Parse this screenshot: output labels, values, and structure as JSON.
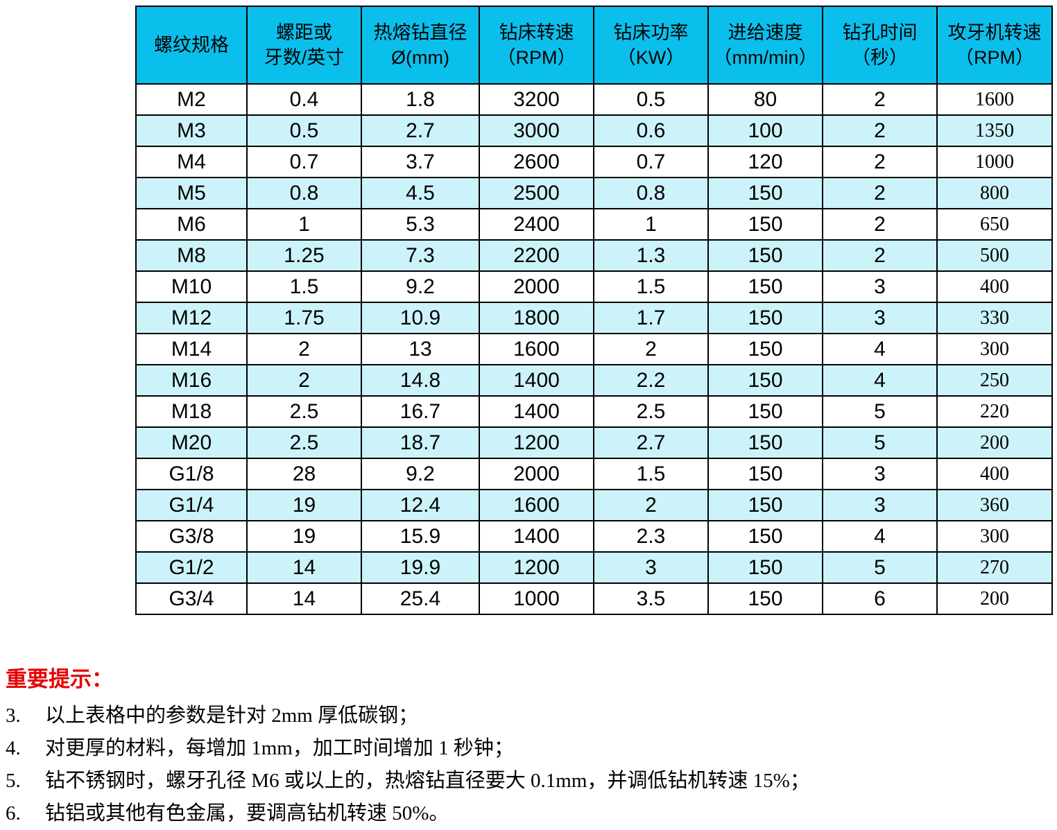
{
  "table": {
    "columns": [
      {
        "line1": "螺纹规格",
        "line2": ""
      },
      {
        "line1": "螺距或",
        "line2": "牙数/英寸"
      },
      {
        "line1": "热熔钻直径",
        "line2": "Ø(mm)"
      },
      {
        "line1": "钻床转速",
        "line2": "（RPM）"
      },
      {
        "line1": "钻床功率",
        "line2": "（KW）"
      },
      {
        "line1": "进给速度",
        "line2": "（mm/min）"
      },
      {
        "line1": "钻孔时间",
        "line2": "（秒）"
      },
      {
        "line1": "攻牙机转速",
        "line2": "（RPM）"
      }
    ],
    "rows": [
      [
        "M2",
        "0.4",
        "1.8",
        "3200",
        "0.5",
        "80",
        "2",
        "1600"
      ],
      [
        "M3",
        "0.5",
        "2.7",
        "3000",
        "0.6",
        "100",
        "2",
        "1350"
      ],
      [
        "M4",
        "0.7",
        "3.7",
        "2600",
        "0.7",
        "120",
        "2",
        "1000"
      ],
      [
        "M5",
        "0.8",
        "4.5",
        "2500",
        "0.8",
        "150",
        "2",
        "800"
      ],
      [
        "M6",
        "1",
        "5.3",
        "2400",
        "1",
        "150",
        "2",
        "650"
      ],
      [
        "M8",
        "1.25",
        "7.3",
        "2200",
        "1.3",
        "150",
        "2",
        "500"
      ],
      [
        "M10",
        "1.5",
        "9.2",
        "2000",
        "1.5",
        "150",
        "3",
        "400"
      ],
      [
        "M12",
        "1.75",
        "10.9",
        "1800",
        "1.7",
        "150",
        "3",
        "330"
      ],
      [
        "M14",
        "2",
        "13",
        "1600",
        "2",
        "150",
        "4",
        "300"
      ],
      [
        "M16",
        "2",
        "14.8",
        "1400",
        "2.2",
        "150",
        "4",
        "250"
      ],
      [
        "M18",
        "2.5",
        "16.7",
        "1400",
        "2.5",
        "150",
        "5",
        "220"
      ],
      [
        "M20",
        "2.5",
        "18.7",
        "1200",
        "2.7",
        "150",
        "5",
        "200"
      ],
      [
        "G1/8",
        "28",
        "9.2",
        "2000",
        "1.5",
        "150",
        "3",
        "400"
      ],
      [
        "G1/4",
        "19",
        "12.4",
        "1600",
        "2",
        "150",
        "3",
        "360"
      ],
      [
        "G3/8",
        "19",
        "15.9",
        "1400",
        "2.3",
        "150",
        "4",
        "300"
      ],
      [
        "G1/2",
        "14",
        "19.9",
        "1200",
        "3",
        "150",
        "5",
        "270"
      ],
      [
        "G3/4",
        "14",
        "25.4",
        "1000",
        "3.5",
        "150",
        "6",
        "200"
      ]
    ]
  },
  "notes": {
    "title": "重要提示：",
    "items": [
      {
        "num": "3.",
        "text": "以上表格中的参数是针对 2mm 厚低碳钢；"
      },
      {
        "num": "4.",
        "text": "对更厚的材料，每增加 1mm，加工时间增加 1 秒钟；"
      },
      {
        "num": "5.",
        "text": "钻不锈钢时，螺牙孔径 M6 或以上的，热熔钻直径要大 0.1mm，并调低钻机转速 15%；"
      },
      {
        "num": "6.",
        "text": "钻铝或其他有色金属，要调高钻机转速 50%。"
      }
    ]
  },
  "colors": {
    "header_bg": "#0bbfec",
    "row_alt_bg": "#ccf3fa",
    "border": "#000000",
    "note_title": "#e60000"
  }
}
